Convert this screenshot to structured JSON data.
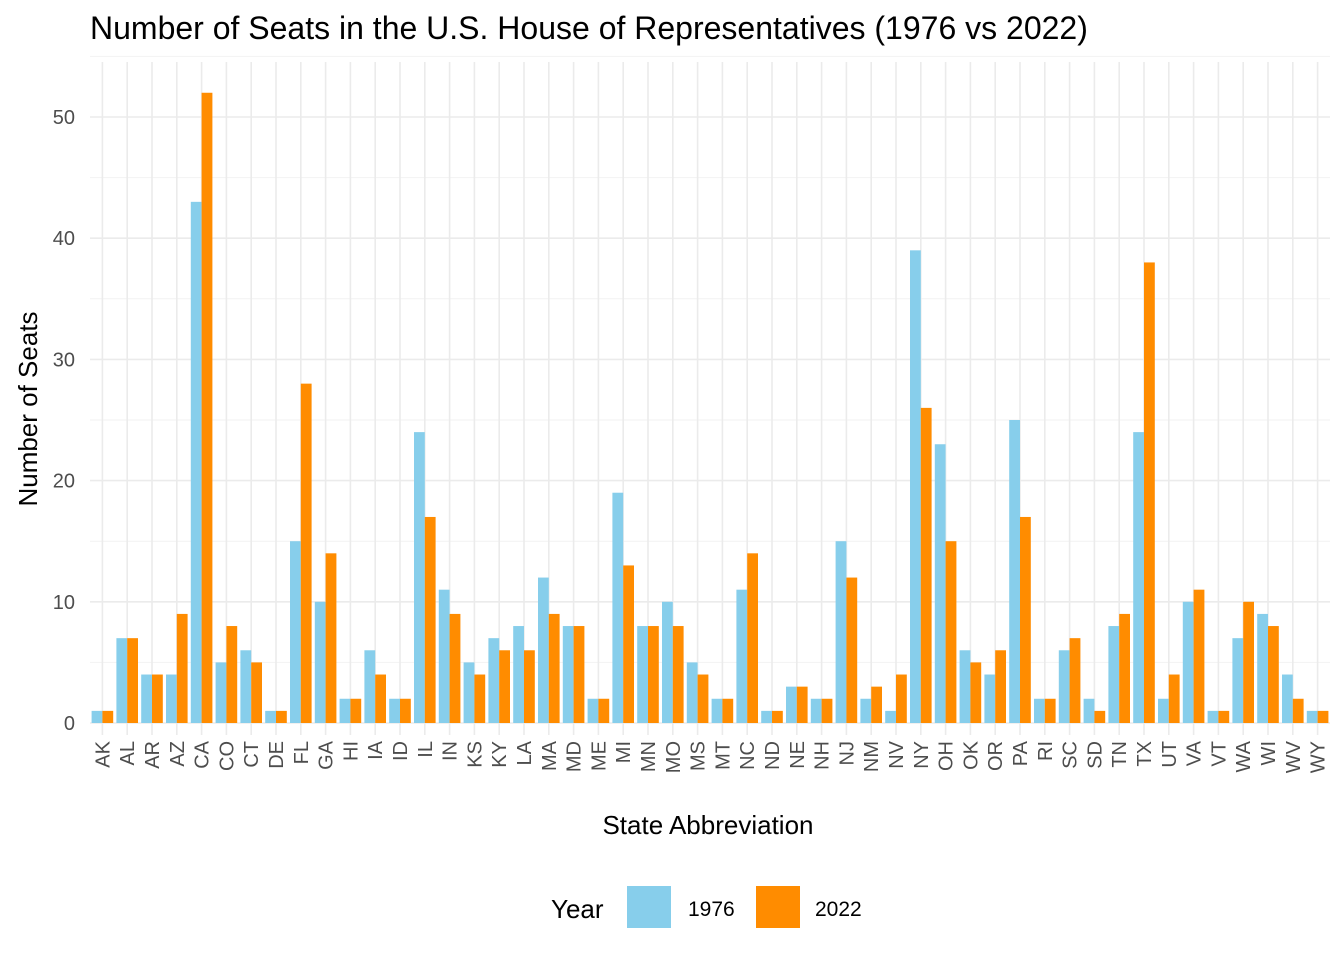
{
  "chart_data": {
    "type": "bar",
    "title": "Number of Seats in the U.S. House of Representatives (1976 vs 2022)",
    "xlabel": "State Abbreviation",
    "ylabel": "Number of Seats",
    "ylim": [
      0,
      55
    ],
    "y_ticks": [
      0,
      10,
      20,
      30,
      40,
      50
    ],
    "grid": true,
    "legend_position": "bottom",
    "legend_title": "Year",
    "categories": [
      "AK",
      "AL",
      "AR",
      "AZ",
      "CA",
      "CO",
      "CT",
      "DE",
      "FL",
      "GA",
      "HI",
      "IA",
      "ID",
      "IL",
      "IN",
      "KS",
      "KY",
      "LA",
      "MA",
      "MD",
      "ME",
      "MI",
      "MN",
      "MO",
      "MS",
      "MT",
      "NC",
      "ND",
      "NE",
      "NH",
      "NJ",
      "NM",
      "NV",
      "NY",
      "OH",
      "OK",
      "OR",
      "PA",
      "RI",
      "SC",
      "SD",
      "TN",
      "TX",
      "UT",
      "VA",
      "VT",
      "WA",
      "WI",
      "WV",
      "WY"
    ],
    "series": [
      {
        "name": "1976",
        "color": "#87CEEB",
        "values": [
          1,
          7,
          4,
          4,
          43,
          5,
          6,
          1,
          15,
          10,
          2,
          6,
          2,
          24,
          11,
          5,
          7,
          8,
          12,
          8,
          2,
          19,
          8,
          10,
          5,
          2,
          11,
          1,
          3,
          2,
          15,
          2,
          1,
          39,
          23,
          6,
          4,
          25,
          2,
          6,
          2,
          8,
          24,
          2,
          10,
          1,
          7,
          9,
          4,
          1
        ]
      },
      {
        "name": "2022",
        "color": "#FF8C00",
        "values": [
          1,
          7,
          4,
          9,
          52,
          8,
          5,
          1,
          28,
          14,
          2,
          4,
          2,
          17,
          9,
          4,
          6,
          6,
          9,
          8,
          2,
          13,
          8,
          8,
          4,
          2,
          14,
          1,
          3,
          2,
          12,
          3,
          4,
          26,
          15,
          5,
          6,
          17,
          2,
          7,
          1,
          9,
          38,
          4,
          11,
          1,
          10,
          8,
          2,
          1
        ]
      }
    ]
  }
}
